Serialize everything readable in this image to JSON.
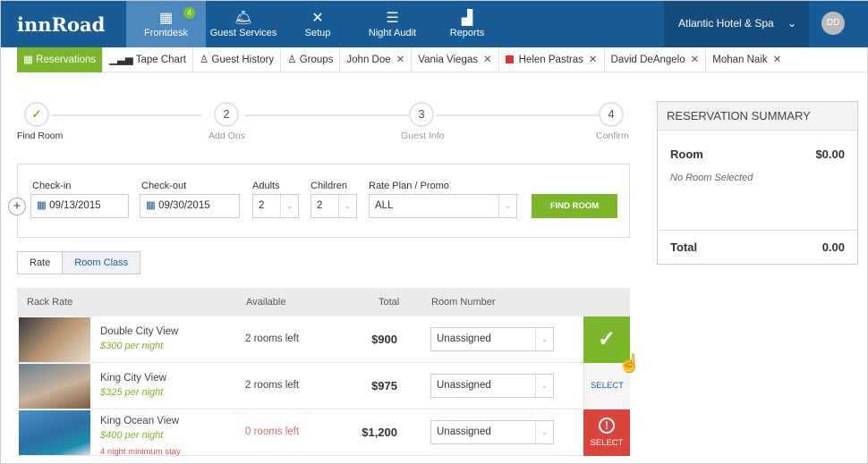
{
  "app": {
    "logo": "innRoad",
    "hotel": "Atlantic Hotel &  Spa",
    "avatar": "DD",
    "frontdesk_badge": "4"
  },
  "nav": [
    {
      "label": "Frontdesk",
      "icon": "calendar-icon"
    },
    {
      "label": "Guest Services",
      "icon": "bell-icon"
    },
    {
      "label": "Setup",
      "icon": "tools-icon"
    },
    {
      "label": "Night Audit",
      "icon": "checklist-icon"
    },
    {
      "label": "Reports",
      "icon": "chart-icon"
    }
  ],
  "tabs": [
    {
      "label": "Reservations"
    },
    {
      "label": "Tape Chart"
    },
    {
      "label": "Guest History"
    },
    {
      "label": "Groups"
    },
    {
      "label": "John Doe"
    },
    {
      "label": "Vania Viegas"
    },
    {
      "label": "Helen Pastras"
    },
    {
      "label": "David DeAngelo"
    },
    {
      "label": "Mohan Naik"
    }
  ],
  "steps": [
    {
      "num": "✓",
      "label": "Find Room"
    },
    {
      "num": "2",
      "label": "Add Ons"
    },
    {
      "num": "3",
      "label": "Guest Info"
    },
    {
      "num": "4",
      "label": "Confirm"
    }
  ],
  "form": {
    "checkin_label": "Check-in",
    "checkin": "09/13/2015",
    "checkout_label": "Check-out",
    "checkout": "09/30/2015",
    "adults_label": "Adults",
    "adults": "2",
    "children_label": "Children",
    "children": "2",
    "rate_label": "Rate Plan / Promo",
    "rate": "ALL",
    "find": "FIND ROOM"
  },
  "toggle": {
    "rate": "Rate",
    "room_class": "Room Class"
  },
  "table": {
    "headers": {
      "rack": "Rack Rate",
      "available": "Available",
      "total": "Total",
      "room": "Room Number"
    },
    "rows": [
      {
        "name": "Double City View",
        "rate": "$300 per night",
        "available": "2 rooms left",
        "total": "$900",
        "room": "Unassigned",
        "action": "✓",
        "state": "selected"
      },
      {
        "name": "King City View",
        "rate": "$325 per night",
        "available": "2 rooms left",
        "total": "$975",
        "room": "Unassigned",
        "action": "SELECT",
        "state": "available"
      },
      {
        "name": "King Ocean View",
        "rate": "$400 per night",
        "note": "4 night minimum stay",
        "available": "0 rooms left",
        "total": "$1,200",
        "room": "Unassigned",
        "action": "SELECT",
        "state": "warning"
      }
    ]
  },
  "summary": {
    "title": "RESERVATION SUMMARY",
    "room_label": "Room",
    "room_value": "$0.00",
    "no_room": "No Room Selected",
    "total_label": "Total",
    "total_value": "0.00"
  },
  "colors": {
    "brand": "#175c96",
    "accent": "#7ab52a",
    "danger": "#d9453a"
  }
}
